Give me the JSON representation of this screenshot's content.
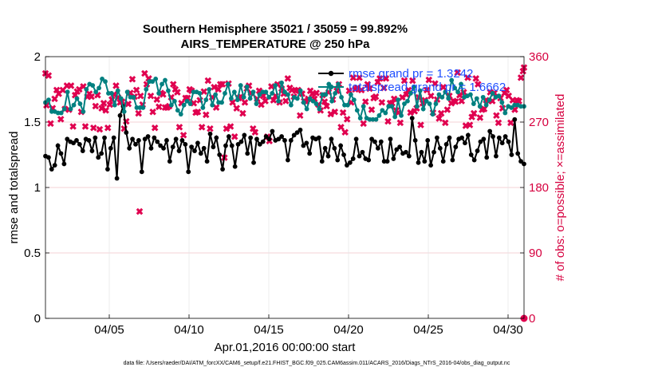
{
  "chart_data": {
    "type": "line",
    "title": "Southern Hemisphere 35021 / 35059 = 99.892%",
    "subtitle": "AIRS_TEMPERATURE @ 250 hPa",
    "xlabel": "Apr.01,2016 00:00:00 start",
    "ylabel_left": "rmse and totalspread",
    "ylabel_right": "# of obs: o=possible; ×=assimilated",
    "x_tick_labels": [
      "04/05",
      "04/10",
      "04/15",
      "04/20",
      "04/25",
      "04/30"
    ],
    "x_tick_days": [
      5,
      10,
      15,
      20,
      25,
      30
    ],
    "xlim_days": [
      1,
      31
    ],
    "ylim_left": [
      0,
      2
    ],
    "y_ticks_left": [
      "0",
      "0.5",
      "1",
      "1.5",
      "2"
    ],
    "ylim_right": [
      0,
      360
    ],
    "y_ticks_right": [
      "0",
      "90",
      "180",
      "270",
      "360"
    ],
    "footnote": "data file: /Users/raeder/DAI/ATM_forcXX/CAM6_setup/f.e21.FHIST_BGC.f09_025.CAM6assim.011/ACARS_2016/Diags_NTrS_2016-04/obs_diag_output.nc",
    "series": [
      {
        "name": "rmse grand pr = 1.3242",
        "color": "#000000",
        "values": [
          1.24,
          1.23,
          1.14,
          1.17,
          1.32,
          1.26,
          1.18,
          1.37,
          1.35,
          1.34,
          1.36,
          1.33,
          1.28,
          1.37,
          1.36,
          1.28,
          1.38,
          1.23,
          1.26,
          1.38,
          1.14,
          1.3,
          1.38,
          1.07,
          1.55,
          1.62,
          1.42,
          1.3,
          1.37,
          1.33,
          1.36,
          1.12,
          1.37,
          1.39,
          1.3,
          1.38,
          1.35,
          1.32,
          1.3,
          1.36,
          1.2,
          1.31,
          1.37,
          1.28,
          1.36,
          1.33,
          1.12,
          1.31,
          1.28,
          1.34,
          1.26,
          1.3,
          1.2,
          1.41,
          1.31,
          1.38,
          1.25,
          1.14,
          1.32,
          1.39,
          1.32,
          1.16,
          1.33,
          1.35,
          1.4,
          1.26,
          1.38,
          1.19,
          1.37,
          1.33,
          1.35,
          1.39,
          1.37,
          1.43,
          1.36,
          1.37,
          1.39,
          1.36,
          1.21,
          1.36,
          1.4,
          1.42,
          1.44,
          1.32,
          1.34,
          1.26,
          1.38,
          1.37,
          1.38,
          1.2,
          1.3,
          1.24,
          1.37,
          1.3,
          1.21,
          1.32,
          1.25,
          1.17,
          1.19,
          1.22,
          1.37,
          1.24,
          1.27,
          1.22,
          1.21,
          1.37,
          1.35,
          1.3,
          1.35,
          1.2,
          1.2,
          1.37,
          1.22,
          1.29,
          1.31,
          1.26,
          1.27,
          1.24,
          1.53,
          1.36,
          1.19,
          1.27,
          1.2,
          1.36,
          1.17,
          1.27,
          1.38,
          1.3,
          1.2,
          1.33,
          1.38,
          1.21,
          1.31,
          1.37,
          1.38,
          1.34,
          1.4,
          1.25,
          1.21,
          1.28,
          1.35,
          1.37,
          1.23,
          1.43,
          1.39,
          1.24,
          1.38,
          1.34,
          1.39,
          1.35,
          1.25,
          1.52,
          1.26,
          1.2,
          1.18
        ]
      },
      {
        "name": "totalspread grand pr = 1.6662",
        "color": "#008080",
        "values": [
          1.65,
          1.67,
          1.58,
          1.58,
          1.57,
          1.57,
          1.6,
          1.73,
          1.6,
          1.63,
          1.68,
          1.64,
          1.58,
          1.75,
          1.79,
          1.78,
          1.73,
          1.76,
          1.83,
          1.81,
          1.72,
          1.72,
          1.63,
          1.74,
          1.68,
          1.58,
          1.73,
          1.69,
          1.69,
          1.61,
          1.61,
          1.61,
          1.75,
          1.81,
          1.81,
          1.83,
          1.72,
          1.79,
          1.82,
          1.74,
          1.63,
          1.66,
          1.59,
          1.56,
          1.63,
          1.66,
          1.64,
          1.73,
          1.73,
          1.72,
          1.61,
          1.67,
          1.75,
          1.63,
          1.71,
          1.65,
          1.65,
          1.72,
          1.79,
          1.68,
          1.73,
          1.67,
          1.78,
          1.69,
          1.77,
          1.68,
          1.73,
          1.64,
          1.71,
          1.73,
          1.73,
          1.69,
          1.72,
          1.78,
          1.66,
          1.8,
          1.73,
          1.71,
          1.63,
          1.69,
          1.68,
          1.74,
          1.65,
          1.6,
          1.68,
          1.66,
          1.64,
          1.6,
          1.71,
          1.71,
          1.79,
          1.66,
          1.72,
          1.79,
          1.69,
          1.63,
          1.63,
          1.71,
          1.67,
          1.59,
          1.53,
          1.62,
          1.53,
          1.52,
          1.52,
          1.52,
          1.55,
          1.59,
          1.57,
          1.62,
          1.62,
          1.54,
          1.67,
          1.55,
          1.64,
          1.66,
          1.72,
          1.77,
          1.62,
          1.74,
          1.6,
          1.66,
          1.64,
          1.56,
          1.64,
          1.71,
          1.69,
          1.73,
          1.68,
          1.82,
          1.76,
          1.73,
          1.79,
          1.69,
          1.7,
          1.71,
          1.64,
          1.68,
          1.62,
          1.69,
          1.63,
          1.67,
          1.72,
          1.69,
          1.7,
          1.65,
          1.57,
          1.62,
          1.61,
          1.63,
          1.63,
          1.62,
          1.62
        ]
      }
    ],
    "obs_possible": {
      "marker": "o",
      "color": "#e0004f",
      "values": []
    },
    "obs_assimilated": {
      "name": "# assimilated",
      "marker": "x",
      "color": "#e0004f",
      "values": [
        293,
        334,
        268,
        289,
        302,
        314,
        309,
        274,
        314,
        288,
        320,
        287,
        320,
        264,
        307,
        312,
        315,
        284,
        319,
        264,
        305,
        309,
        305,
        262,
        292,
        307,
        260,
        289,
        296,
        286,
        262,
        294,
        301,
        308,
        320,
        304,
        297,
        298,
        261,
        271,
        295,
        310,
        329,
        305,
        314,
        282,
        306,
        294,
        337,
        322,
        330,
        306,
        284,
        262,
        301,
        291,
        310,
        308,
        290,
        290,
        292,
        304,
        322,
        315,
        311,
        263,
        296,
        252,
        303,
        303,
        315,
        313,
        296,
        283,
        284,
        300,
        263,
        312,
        280,
        327,
        261,
        304,
        318,
        290,
        315,
        322,
        322,
        221,
        261,
        323,
        264,
        297,
        250,
        289,
        303,
        305,
        282,
        297,
        316,
        320,
        310,
        261,
        256,
        302,
        313,
        294,
        306,
        299,
        250,
        244,
        319,
        300,
        306,
        322,
        297,
        316,
        309,
        299,
        330,
        317,
        314,
        305,
        313,
        314,
        279,
        309,
        299,
        298,
        302,
        313,
        309,
        302,
        310,
        294,
        286,
        307,
        298,
        292,
        311,
        281,
        301,
        284,
        313,
        322,
        263,
        283,
        256,
        274,
        313,
        297,
        331,
        315,
        317,
        331,
        314,
        268,
        298,
        322,
        316,
        287,
        303,
        305,
        325,
        330,
        297,
        317,
        330,
        271,
        296,
        296,
        302,
        286,
        283,
        269,
        304,
        327,
        308,
        314,
        283,
        327,
        285,
        289,
        304,
        266,
        296,
        300,
        314,
        328,
        306,
        283,
        323,
        301,
        275,
        282,
        318,
        269,
        287,
        306,
        296,
        299,
        298,
        338,
        307,
        299,
        311,
        265,
        331,
        266,
        277,
        282,
        330,
        322,
        276,
        287,
        288,
        300,
        299,
        311,
        299,
        310,
        279,
        269,
        303,
        289,
        310,
        314,
        306,
        269,
        300,
        287,
        300,
        299,
        331,
        340
      ]
    },
    "obs_assimilated_outliers": [
      {
        "day": 6.9,
        "value": 147
      },
      {
        "day": 1.0,
        "value": 337
      },
      {
        "day": 31.0,
        "value": 345
      }
    ],
    "obs_possible_points": [
      {
        "day": 31.0,
        "value": 0
      }
    ]
  }
}
